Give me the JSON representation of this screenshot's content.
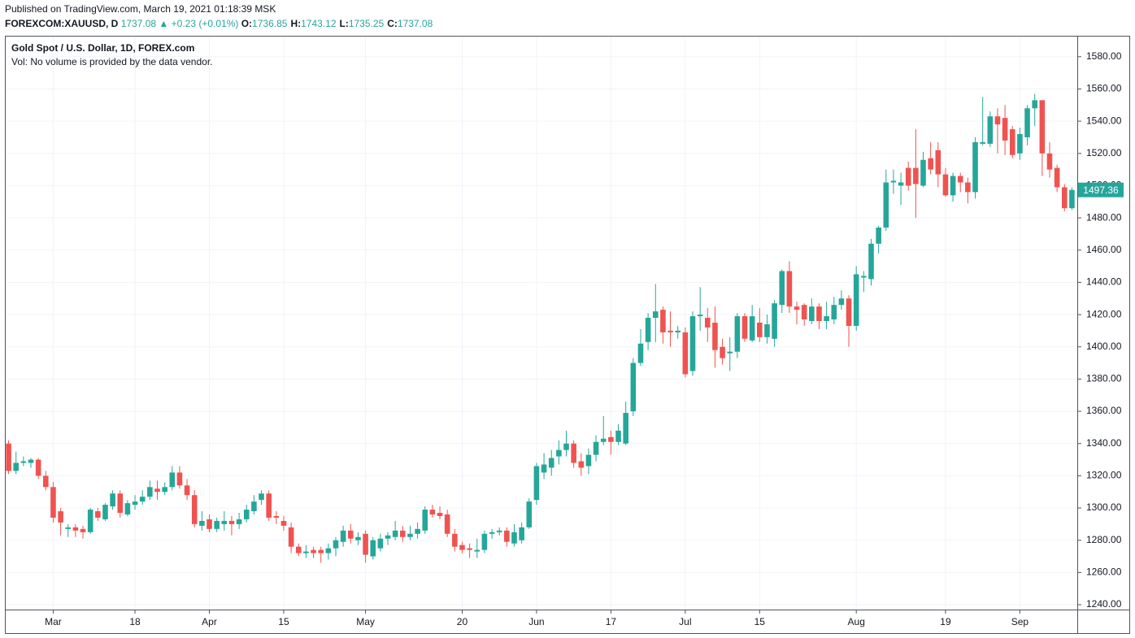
{
  "header": {
    "published": "Published on TradingView.com, March 19, 2021 01:18:39 MSK",
    "symbol": "FOREXCOM:XAUUSD, D",
    "price": "1737.08",
    "change": "▲ +0.23 (+0.01%)",
    "ohlc": [
      {
        "label": "O:",
        "value": "1736.85"
      },
      {
        "label": "H:",
        "value": "1743.12"
      },
      {
        "label": "L:",
        "value": "1735.25"
      },
      {
        "label": "C:",
        "value": "1737.08"
      }
    ]
  },
  "chart_data": {
    "type": "candlestick",
    "title": "Gold Spot / U.S. Dollar, 1D, FOREX.com",
    "subtitle": "Vol: No volume is provided by the data vendor.",
    "up_color": "#26a69a",
    "down_color": "#ef5350",
    "grid": true,
    "ylim": [
      1237,
      1593
    ],
    "yticks": [
      {
        "value": 1240,
        "label": "1240.00"
      },
      {
        "value": 1260,
        "label": "1260.00"
      },
      {
        "value": 1280,
        "label": "1280.00"
      },
      {
        "value": 1300,
        "label": "1300.00"
      },
      {
        "value": 1320,
        "label": "1320.00"
      },
      {
        "value": 1340,
        "label": "1340.00"
      },
      {
        "value": 1360,
        "label": "1360.00"
      },
      {
        "value": 1380,
        "label": "1380.00"
      },
      {
        "value": 1400,
        "label": "1400.00"
      },
      {
        "value": 1420,
        "label": "1420.00"
      },
      {
        "value": 1440,
        "label": "1440.00"
      },
      {
        "value": 1460,
        "label": "1460.00"
      },
      {
        "value": 1480,
        "label": "1480.00"
      },
      {
        "value": 1500,
        "label": "1500.00"
      },
      {
        "value": 1520,
        "label": "1520.00"
      },
      {
        "value": 1540,
        "label": "1540.00"
      },
      {
        "value": 1560,
        "label": "1560.00"
      },
      {
        "value": 1580,
        "label": "1580.00"
      }
    ],
    "categories": [
      null,
      null,
      null,
      null,
      null,
      null,
      "Mar",
      null,
      null,
      null,
      null,
      null,
      null,
      null,
      null,
      null,
      null,
      "18",
      null,
      null,
      null,
      null,
      null,
      null,
      null,
      null,
      null,
      "Apr",
      null,
      null,
      null,
      null,
      null,
      null,
      null,
      null,
      null,
      "15",
      null,
      null,
      null,
      null,
      null,
      null,
      null,
      null,
      null,
      null,
      "May",
      null,
      null,
      null,
      null,
      null,
      null,
      null,
      null,
      null,
      null,
      null,
      null,
      "20",
      null,
      null,
      null,
      null,
      null,
      null,
      null,
      null,
      null,
      "Jun",
      null,
      null,
      null,
      null,
      null,
      null,
      null,
      null,
      null,
      "17",
      null,
      null,
      null,
      null,
      null,
      null,
      null,
      null,
      null,
      "Jul",
      null,
      null,
      null,
      null,
      null,
      null,
      null,
      null,
      null,
      "15",
      null,
      null,
      null,
      null,
      null,
      null,
      null,
      null,
      null,
      null,
      null,
      null,
      "Aug",
      null,
      null,
      null,
      null,
      null,
      null,
      null,
      null,
      null,
      null,
      null,
      "19",
      null,
      null,
      null,
      null,
      null,
      null,
      null,
      null,
      null,
      "Sep",
      null,
      null,
      null,
      null,
      null,
      null,
      null
    ],
    "open": [
      1340,
      1323,
      1328,
      1328,
      1330,
      1320,
      1313,
      1298,
      1287,
      1288,
      1287,
      1285,
      1298,
      1293,
      1301,
      1309,
      1296,
      1302,
      1304,
      1307,
      1312,
      1310,
      1313,
      1322,
      1314,
      1308,
      1289,
      1293,
      1287,
      1290,
      1292,
      1290,
      1293,
      1298,
      1305,
      1309,
      1295,
      1292,
      1288,
      1276,
      1272,
      1274,
      1274,
      1272,
      1275,
      1279,
      1286,
      1280,
      1284,
      1270,
      1275,
      1281,
      1282,
      1286,
      1282,
      1284,
      1286,
      1299,
      1297,
      1296,
      1284,
      1277,
      1275,
      1273,
      1274,
      1284,
      1285,
      1286,
      1278,
      1280,
      1288,
      1305,
      1322,
      1325,
      1332,
      1336,
      1340,
      1329,
      1326,
      1333,
      1341,
      1344,
      1341,
      1340,
      1360,
      1390,
      1403,
      1418,
      1423,
      1410,
      1409,
      1409,
      1385,
      1419,
      1418,
      1415,
      1400,
      1396,
      1397,
      1419,
      1404,
      1415,
      1406,
      1405,
      1426,
      1447,
      1425,
      1426,
      1416,
      1425,
      1416,
      1417,
      1426,
      1430,
      1413,
      1443,
      1442,
      1464,
      1474,
      1502,
      1500,
      1511,
      1511,
      1500,
      1517,
      1522,
      1507,
      1494,
      1506,
      1502,
      1496,
      1526,
      1526,
      1543,
      1542,
      1535,
      1520,
      1530,
      1548,
      1553,
      1520,
      1511,
      1499,
      1486
    ],
    "high": [
      1342,
      1335,
      1332,
      1331,
      1331,
      1323,
      1316,
      1300,
      1290,
      1290,
      1289,
      1300,
      1300,
      1303,
      1311,
      1311,
      1305,
      1308,
      1311,
      1317,
      1317,
      1316,
      1326,
      1326,
      1318,
      1311,
      1298,
      1296,
      1294,
      1298,
      1295,
      1297,
      1302,
      1308,
      1311,
      1311,
      1298,
      1295,
      1291,
      1278,
      1277,
      1276,
      1276,
      1278,
      1282,
      1289,
      1290,
      1285,
      1286,
      1282,
      1284,
      1285,
      1292,
      1289,
      1289,
      1291,
      1301,
      1302,
      1301,
      1299,
      1287,
      1279,
      1278,
      1281,
      1286,
      1287,
      1288,
      1288,
      1290,
      1291,
      1306,
      1328,
      1334,
      1336,
      1342,
      1348,
      1342,
      1334,
      1337,
      1345,
      1357,
      1348,
      1352,
      1366,
      1393,
      1411,
      1421,
      1439,
      1425,
      1422,
      1413,
      1412,
      1422,
      1437,
      1424,
      1425,
      1405,
      1406,
      1421,
      1421,
      1426,
      1424,
      1420,
      1429,
      1448,
      1453,
      1428,
      1427,
      1430,
      1427,
      1428,
      1431,
      1435,
      1432,
      1450,
      1447,
      1467,
      1475,
      1510,
      1510,
      1508,
      1515,
      1535,
      1521,
      1527,
      1527,
      1511,
      1508,
      1508,
      1505,
      1530,
      1555,
      1546,
      1548,
      1550,
      1537,
      1536,
      1550,
      1557,
      1553,
      1527,
      1513,
      1501,
      1499
    ],
    "low": [
      1321,
      1321,
      1326,
      1325,
      1318,
      1311,
      1291,
      1283,
      1282,
      1282,
      1281,
      1284,
      1292,
      1292,
      1299,
      1294,
      1295,
      1299,
      1302,
      1305,
      1305,
      1308,
      1311,
      1312,
      1305,
      1288,
      1286,
      1285,
      1285,
      1286,
      1283,
      1287,
      1291,
      1296,
      1302,
      1292,
      1290,
      1286,
      1272,
      1270,
      1269,
      1269,
      1266,
      1268,
      1270,
      1276,
      1278,
      1277,
      1266,
      1268,
      1273,
      1277,
      1280,
      1279,
      1280,
      1281,
      1284,
      1294,
      1293,
      1282,
      1273,
      1272,
      1269,
      1269,
      1272,
      1281,
      1283,
      1276,
      1276,
      1278,
      1287,
      1302,
      1318,
      1320,
      1327,
      1332,
      1325,
      1320,
      1321,
      1329,
      1339,
      1333,
      1339,
      1339,
      1357,
      1388,
      1398,
      1403,
      1402,
      1400,
      1405,
      1381,
      1382,
      1410,
      1403,
      1387,
      1389,
      1385,
      1393,
      1403,
      1403,
      1403,
      1402,
      1400,
      1421,
      1421,
      1414,
      1413,
      1414,
      1411,
      1411,
      1414,
      1423,
      1400,
      1410,
      1434,
      1438,
      1458,
      1472,
      1495,
      1488,
      1497,
      1480,
      1499,
      1507,
      1499,
      1493,
      1490,
      1496,
      1489,
      1492,
      1525,
      1524,
      1520,
      1519,
      1517,
      1516,
      1525,
      1537,
      1506,
      1505,
      1496,
      1484,
      1485
    ],
    "close": [
      1323,
      1328,
      1329,
      1330,
      1320,
      1313,
      1294,
      1291,
      1288,
      1286,
      1285,
      1299,
      1294,
      1302,
      1309,
      1297,
      1303,
      1304,
      1307,
      1313,
      1310,
      1313,
      1322,
      1314,
      1308,
      1290,
      1292,
      1287,
      1292,
      1292,
      1290,
      1293,
      1299,
      1304,
      1309,
      1294,
      1294,
      1289,
      1276,
      1272,
      1273,
      1272,
      1272,
      1275,
      1280,
      1286,
      1281,
      1282,
      1271,
      1280,
      1281,
      1283,
      1286,
      1282,
      1284,
      1287,
      1299,
      1296,
      1295,
      1284,
      1276,
      1274,
      1274,
      1274,
      1284,
      1285,
      1286,
      1279,
      1285,
      1288,
      1304,
      1326,
      1327,
      1331,
      1336,
      1340,
      1328,
      1325,
      1333,
      1341,
      1343,
      1341,
      1348,
      1359,
      1390,
      1402,
      1418,
      1422,
      1409,
      1409,
      1410,
      1383,
      1419,
      1420,
      1412,
      1398,
      1393,
      1397,
      1419,
      1405,
      1419,
      1406,
      1414,
      1427,
      1447,
      1425,
      1423,
      1417,
      1425,
      1416,
      1419,
      1426,
      1430,
      1413,
      1445,
      1444,
      1464,
      1474,
      1502,
      1503,
      1502,
      1500,
      1501,
      1516,
      1510,
      1507,
      1494,
      1506,
      1502,
      1496,
      1527,
      1527,
      1543,
      1538,
      1528,
      1519,
      1532,
      1548,
      1553,
      1520,
      1510,
      1499,
      1486,
      1497.36
    ]
  }
}
